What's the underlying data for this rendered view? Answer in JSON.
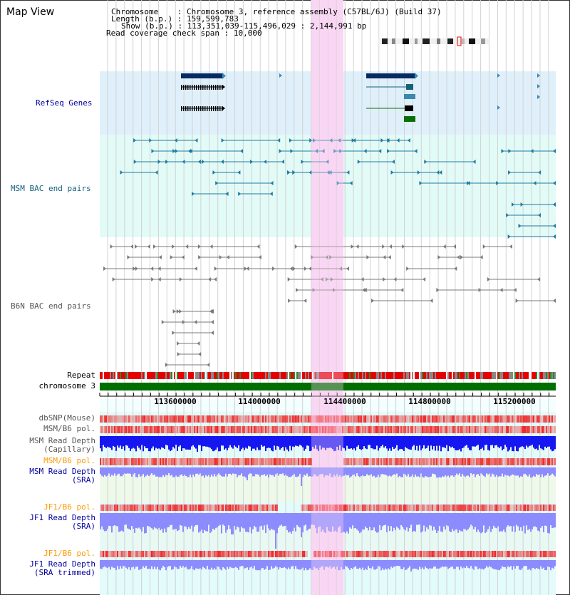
{
  "title": "Map View",
  "header": {
    "chromosome_label": "Chromosome",
    "chromosome_value": "Chromosome 3, reference assembly (C57BL/6J) (Build 37)",
    "length_label": "Length (b.p.)",
    "length_value": "159,599,783",
    "show_label": "Show (b.p.)",
    "show_value": "113,351,039-115,496,029 : 2,144,991 bp",
    "coverage_label": "Read coverage check span",
    "coverage_value": "10,000"
  },
  "tracks": {
    "refseq": "RefSeq Genes",
    "msm_bac": "MSM BAC end pairs",
    "b6n_bac": "B6N BAC end pairs",
    "repeat": "Repeat",
    "chromosome": "chromosome 3",
    "dbsnp": "dbSNP(Mouse)",
    "msm_b6_pol_1": "MSM/B6 pol.",
    "msm_depth_cap_1": "MSM Read Depth",
    "msm_depth_cap_2": "(Capillary)",
    "msm_b6_pol_2": "MSM/B6 pol.",
    "msm_depth_sra_1": "MSM Read Depth",
    "msm_depth_sra_2": "(SRA)",
    "jf1_b6_pol_1": "JF1/B6 pol.",
    "jf1_depth_sra_1": "JF1 Read Depth",
    "jf1_depth_sra_2": "(SRA)",
    "jf1_b6_pol_2": "JF1/B6 pol.",
    "jf1_depth_trim_1": "JF1 Read Depth",
    "jf1_depth_trim_2": "(SRA trimmed)"
  },
  "axis_ticks": [
    "113600000",
    "114000000",
    "114400000",
    "114800000",
    "115200000"
  ],
  "colors": {
    "refseq_bg": "#dff0fb",
    "msm_bg": "#e2fbf7",
    "highlight": "#f9d6f3",
    "chromosome_bar": "#006e00",
    "repeat_red": "#e60000",
    "snp_red": "#ee3333",
    "depth_blue": "#1616f0",
    "depth_light": "#8c8cff",
    "bac_teal": "#217aa0",
    "bac_gray": "#7a7a7a",
    "gene_navy": "#062a62",
    "gene_green": "#0a6e0a"
  }
}
